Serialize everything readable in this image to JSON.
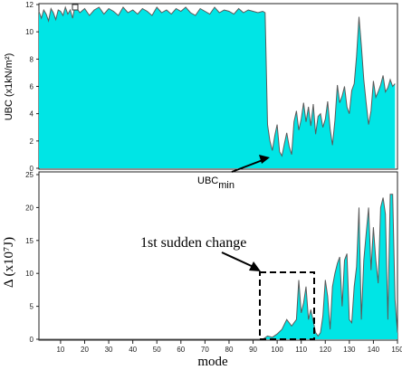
{
  "chart_data": [
    {
      "type": "area",
      "ylabel": "UBC (x1kN/m²)",
      "ylim": [
        0,
        12
      ],
      "yticks": [
        0,
        2,
        4,
        6,
        8,
        10,
        12
      ],
      "xlim": [
        1,
        150
      ],
      "fill_color": "#00e5e5",
      "line_color": "#5a5a5a",
      "x": [
        1,
        2,
        3,
        4,
        5,
        6,
        7,
        8,
        9,
        10,
        11,
        12,
        13,
        14,
        15,
        16,
        18,
        20,
        22,
        24,
        26,
        28,
        30,
        32,
        34,
        36,
        38,
        40,
        42,
        44,
        46,
        48,
        50,
        52,
        54,
        56,
        58,
        60,
        62,
        64,
        66,
        68,
        70,
        72,
        74,
        76,
        78,
        80,
        82,
        84,
        86,
        88,
        90,
        92,
        94,
        95,
        96,
        97,
        98,
        99,
        100,
        101,
        102,
        103,
        104,
        105,
        106,
        107,
        108,
        109,
        110,
        111,
        112,
        113,
        114,
        115,
        116,
        117,
        118,
        119,
        120,
        121,
        122,
        123,
        124,
        125,
        126,
        127,
        128,
        129,
        130,
        131,
        132,
        133,
        134,
        135,
        136,
        137,
        138,
        139,
        140,
        141,
        142,
        143,
        144,
        145,
        146,
        147,
        148,
        149
      ],
      "values": [
        11.5,
        11.0,
        11.6,
        11.3,
        10.8,
        11.7,
        11.4,
        10.9,
        11.6,
        11.5,
        11.2,
        11.8,
        11.3,
        11.6,
        11.0,
        11.9,
        11.4,
        11.7,
        11.2,
        11.6,
        11.8,
        11.3,
        11.7,
        11.5,
        11.2,
        11.8,
        11.4,
        11.6,
        11.3,
        11.7,
        11.5,
        11.2,
        11.8,
        11.4,
        11.6,
        11.3,
        11.7,
        11.5,
        11.8,
        11.4,
        11.2,
        11.7,
        11.5,
        11.3,
        11.8,
        11.4,
        11.6,
        11.5,
        11.3,
        11.7,
        11.4,
        11.6,
        11.5,
        11.4,
        11.5,
        11.4,
        3.2,
        2.0,
        1.3,
        2.4,
        3.2,
        1.2,
        0.9,
        1.8,
        2.6,
        1.6,
        1.0,
        3.4,
        4.2,
        2.8,
        3.6,
        4.8,
        3.4,
        4.5,
        3.1,
        4.7,
        2.5,
        3.8,
        4.0,
        3.0,
        3.6,
        4.9,
        2.9,
        1.7,
        3.5,
        6.1,
        4.8,
        5.3,
        6.0,
        4.5,
        4.0,
        5.7,
        6.2,
        8.2,
        11.1,
        9.0,
        6.5,
        4.8,
        3.2,
        4.2,
        6.4,
        5.2,
        5.6,
        6.1,
        6.8,
        5.6,
        5.9,
        6.5,
        6.0,
        6.2
      ]
    },
    {
      "type": "area",
      "ylabel": "Δ (x10⁷J)",
      "xlabel": "mode",
      "ylim": [
        0,
        25
      ],
      "yticks": [
        0,
        5,
        10,
        15,
        20,
        25
      ],
      "xlim": [
        1,
        150
      ],
      "xticks": [
        10,
        20,
        30,
        40,
        50,
        60,
        70,
        80,
        90,
        100,
        110,
        120,
        130,
        140,
        150
      ],
      "fill_color": "#00e5e5",
      "line_color": "#5a5a5a",
      "x": [
        1,
        94,
        96,
        98,
        100,
        102,
        104,
        106,
        108,
        109,
        110,
        111,
        112,
        113,
        114,
        116,
        117,
        118,
        119,
        120,
        121,
        122,
        123,
        124,
        125,
        126,
        127,
        128,
        129,
        130,
        131,
        132,
        133,
        134,
        135,
        136,
        137,
        138,
        139,
        140,
        141,
        142,
        143,
        144,
        145,
        146,
        147,
        148,
        149,
        150
      ],
      "values": [
        0,
        0,
        0.5,
        0.3,
        0.8,
        1.5,
        3.0,
        2.0,
        3.0,
        9.0,
        4.0,
        5.5,
        8.0,
        3.0,
        4.5,
        1.0,
        0.5,
        1.0,
        3.5,
        9.0,
        6.5,
        1.5,
        8.0,
        10.0,
        11.5,
        12.5,
        5.0,
        12.0,
        13.0,
        3.0,
        2.5,
        8.0,
        11.0,
        20.0,
        3.0,
        12.0,
        16.0,
        20.0,
        10.5,
        17.0,
        12.0,
        8.5,
        20.0,
        21.5,
        19.0,
        3.0,
        22.0,
        22.0,
        6.0,
        1.0
      ],
      "annotations": [
        "1st sudden change"
      ]
    }
  ],
  "labels": {
    "ubc_min_main": "UBC",
    "ubc_min_sub": "min"
  }
}
